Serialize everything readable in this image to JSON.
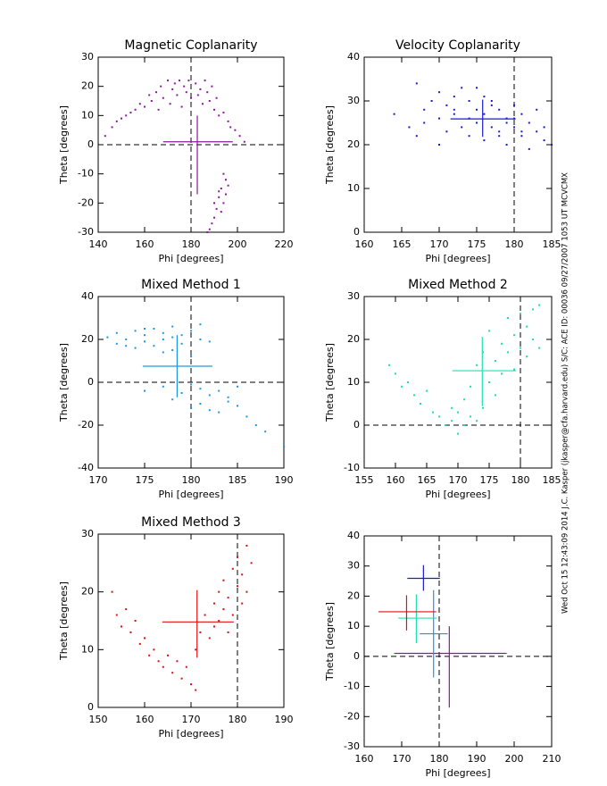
{
  "annotation": "Wed Oct 15 12:43:09 2014    J.C. Kasper (jkasper@cfa.harvard.edu)    S/C: ACE ID: 00036 09/27/2007    1053 UT MCVCMX",
  "chart_data": [
    {
      "type": "scatter",
      "title": "Magnetic Coplanarity",
      "xlabel": "Phi [degrees]",
      "ylabel": "Theta [degrees]",
      "xlim": [
        140,
        220
      ],
      "ylim": [
        -30,
        30
      ],
      "xticks": [
        140,
        160,
        180,
        200,
        220
      ],
      "yticks": [
        -30,
        -20,
        -10,
        0,
        10,
        20,
        30
      ],
      "reference_x": 180,
      "reference_y": 0,
      "series": {
        "color": "#8a1a9a",
        "x": [
          143,
          146,
          148,
          150,
          152,
          154,
          156,
          158,
          160,
          162,
          163,
          165,
          166,
          167,
          168,
          170,
          171,
          172,
          173,
          174,
          175,
          176,
          177,
          178,
          179,
          180,
          182,
          183,
          184,
          185,
          186,
          187,
          188,
          189,
          190,
          191,
          192,
          194,
          196,
          197,
          199,
          201,
          203,
          194,
          195,
          193,
          192,
          194,
          191,
          190,
          189,
          188,
          192,
          195,
          193,
          187,
          190,
          196
        ],
        "y": [
          3,
          6,
          8,
          9,
          10,
          11,
          12,
          14,
          13,
          17,
          15,
          18,
          12,
          20,
          16,
          22,
          14,
          19,
          21,
          17,
          22,
          13,
          20,
          18,
          22,
          16,
          21,
          17,
          19,
          14,
          22,
          18,
          15,
          20,
          12,
          16,
          10,
          11,
          8,
          6,
          5,
          3,
          1,
          -10,
          -12,
          -15,
          -18,
          -20,
          -22,
          -25,
          -27,
          -29,
          -16,
          -17,
          -23,
          -30,
          -20,
          -14
        ]
      },
      "crosshair": {
        "x": 182.7,
        "y": 1,
        "xrange": [
          168,
          198
        ],
        "yrange": [
          -17,
          10
        ]
      }
    },
    {
      "type": "scatter",
      "title": "Velocity Coplanarity",
      "xlabel": "Phi [degrees]",
      "ylabel": "Theta [degrees]",
      "xlim": [
        160,
        185
      ],
      "ylim": [
        0,
        40
      ],
      "xticks": [
        160,
        165,
        170,
        175,
        180,
        185
      ],
      "yticks": [
        0,
        10,
        20,
        30,
        40
      ],
      "reference_x": 180,
      "series": {
        "color": "#1a1ad0",
        "x": [
          164,
          166,
          167,
          167,
          168,
          169,
          170,
          170,
          171,
          171,
          172,
          172,
          173,
          173,
          174,
          174,
          175,
          175,
          175,
          176,
          176,
          177,
          177,
          178,
          178,
          179,
          179,
          180,
          180,
          181,
          181,
          182,
          182,
          183,
          183,
          184,
          184,
          185,
          172,
          174,
          176,
          178,
          180,
          170,
          168,
          177,
          179,
          181
        ],
        "y": [
          27,
          24,
          34,
          22,
          25,
          30,
          32,
          26,
          29,
          23,
          31,
          27,
          33,
          24,
          30,
          22,
          28,
          25,
          33,
          27,
          21,
          30,
          24,
          28,
          23,
          26,
          20,
          29,
          24,
          22,
          27,
          25,
          19,
          23,
          28,
          21,
          24,
          20,
          28,
          26,
          31,
          22,
          26,
          20,
          28,
          29,
          25,
          23
        ]
      },
      "crosshair": {
        "x": 175.8,
        "y": 25.9,
        "xrange": [
          171.5,
          180.2
        ],
        "yrange": [
          21.8,
          30.3
        ]
      }
    },
    {
      "type": "scatter",
      "title": "Mixed Method 1",
      "xlabel": "Phi [degrees]",
      "ylabel": "Theta [degrees]",
      "xlim": [
        170,
        190
      ],
      "ylim": [
        -40,
        40
      ],
      "xticks": [
        170,
        175,
        180,
        185,
        190
      ],
      "yticks": [
        -40,
        -20,
        0,
        20,
        40
      ],
      "reference_x": 180,
      "reference_y": 0,
      "series": {
        "color": "#1e96e6",
        "x": [
          171,
          172,
          173,
          174,
          174,
          175,
          175,
          176,
          176,
          177,
          177,
          178,
          178,
          179,
          179,
          180,
          180,
          181,
          181,
          182,
          172,
          173,
          175,
          177,
          178,
          175,
          177,
          178,
          179,
          180,
          180,
          181,
          181,
          182,
          183,
          183,
          184,
          185,
          185,
          186,
          187,
          188,
          190,
          184,
          182
        ],
        "y": [
          21,
          18,
          20,
          24,
          16,
          22,
          19,
          25,
          17,
          23,
          20,
          26,
          15,
          22,
          18,
          24,
          12,
          20,
          27,
          19,
          23,
          17,
          25,
          14,
          21,
          -4,
          -2,
          -8,
          -5,
          -1,
          -12,
          -3,
          -10,
          -6,
          -4,
          -14,
          -9,
          -2,
          -11,
          -16,
          -20,
          -23,
          -30,
          -7,
          -13
        ]
      },
      "crosshair": {
        "x": 178.5,
        "y": 7.5,
        "xrange": [
          174.8,
          182.3
        ],
        "yrange": [
          -7,
          22
        ]
      }
    },
    {
      "type": "scatter",
      "title": "Mixed Method 2",
      "xlabel": "Phi [degrees]",
      "ylabel": "Theta [degrees]",
      "xlim": [
        155,
        185
      ],
      "ylim": [
        -10,
        30
      ],
      "xticks": [
        155,
        160,
        165,
        170,
        175,
        180,
        185
      ],
      "yticks": [
        -10,
        0,
        10,
        20,
        30
      ],
      "reference_x": 180,
      "reference_y": 0,
      "series": {
        "color": "#20e0b0",
        "x": [
          159,
          160,
          161,
          162,
          163,
          164,
          165,
          166,
          167,
          168,
          169,
          169,
          170,
          170,
          171,
          171,
          172,
          172,
          173,
          173,
          174,
          174,
          175,
          175,
          176,
          176,
          177,
          177,
          178,
          178,
          179,
          179,
          180,
          180,
          181,
          181,
          182,
          182,
          183,
          183
        ],
        "y": [
          14,
          12,
          9,
          10,
          7,
          5,
          8,
          3,
          2,
          0,
          1,
          4,
          -2,
          3,
          0,
          6,
          2,
          9,
          1,
          14,
          4,
          17,
          10,
          22,
          7,
          15,
          19,
          12,
          25,
          17,
          21,
          13,
          26,
          18,
          23,
          16,
          27,
          20,
          28,
          18
        ]
      },
      "crosshair": {
        "x": 173.9,
        "y": 12.7,
        "xrange": [
          169.1,
          179.3
        ],
        "yrange": [
          4.4,
          20.6
        ]
      }
    },
    {
      "type": "scatter",
      "title": "Mixed Method 3",
      "xlabel": "Phi [degrees]",
      "ylabel": "Theta [degrees]",
      "xlim": [
        150,
        190
      ],
      "ylim": [
        0,
        30
      ],
      "xticks": [
        150,
        160,
        170,
        180,
        190
      ],
      "yticks": [
        0,
        10,
        20,
        30
      ],
      "reference_x": 180,
      "series": {
        "color": "#e01010",
        "x": [
          153,
          154,
          155,
          156,
          157,
          158,
          159,
          160,
          161,
          162,
          163,
          164,
          165,
          166,
          167,
          168,
          169,
          170,
          171,
          171,
          172,
          173,
          174,
          175,
          175,
          176,
          176,
          177,
          177,
          178,
          178,
          179,
          179,
          180,
          180,
          181,
          181,
          182,
          182,
          183
        ],
        "y": [
          20,
          16,
          14,
          17,
          13,
          15,
          11,
          12,
          9,
          10,
          8,
          7,
          9,
          6,
          8,
          5,
          7,
          4,
          10,
          3,
          13,
          16,
          12,
          18,
          14,
          20,
          15,
          17,
          22,
          19,
          13,
          24,
          16,
          21,
          26,
          18,
          23,
          28,
          20,
          25
        ]
      },
      "crosshair": {
        "x": 171.3,
        "y": 14.8,
        "xrange": [
          163.8,
          179.2
        ],
        "yrange": [
          8.6,
          20.3
        ]
      }
    },
    {
      "type": "crosshair-summary",
      "xlabel": "Phi [degrees]",
      "ylabel": "Theta [degrees]",
      "xlim": [
        160,
        210
      ],
      "ylim": [
        -30,
        40
      ],
      "xticks": [
        160,
        170,
        180,
        190,
        200,
        210
      ],
      "yticks": [
        -30,
        -20,
        -10,
        0,
        10,
        20,
        30,
        40
      ],
      "reference_x": 180,
      "reference_y": 0
    }
  ]
}
